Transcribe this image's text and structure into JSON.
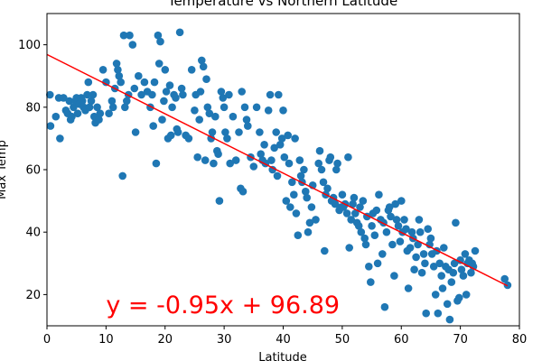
{
  "chart_data": {
    "type": "scatter",
    "title": "Temperature vs Northern Latitude",
    "xlabel": "Latitude",
    "ylabel": "Max Temp",
    "xlim": [
      0,
      80
    ],
    "ylim": [
      10,
      110
    ],
    "xticks": [
      0,
      10,
      20,
      30,
      40,
      50,
      60,
      70,
      80
    ],
    "yticks": [
      20,
      40,
      60,
      80,
      100
    ],
    "grid": false,
    "marker_color": "#1f77b4",
    "regression": {
      "slope": -0.95,
      "intercept": 96.89,
      "x_range": [
        0,
        78
      ],
      "color": "#ff0000",
      "equation": "y = -0.95x + 96.89",
      "equation_anchor": [
        10,
        14
      ]
    },
    "points": [
      [
        0.5,
        84
      ],
      [
        0.6,
        74
      ],
      [
        1.5,
        77
      ],
      [
        2.0,
        83
      ],
      [
        2.2,
        70
      ],
      [
        2.8,
        83
      ],
      [
        3.2,
        79
      ],
      [
        3.5,
        78
      ],
      [
        3.8,
        82
      ],
      [
        4.0,
        76
      ],
      [
        4.2,
        77
      ],
      [
        4.5,
        80
      ],
      [
        4.8,
        82
      ],
      [
        5.0,
        83
      ],
      [
        5.2,
        78
      ],
      [
        5.5,
        81
      ],
      [
        5.8,
        83
      ],
      [
        6.0,
        82
      ],
      [
        6.2,
        80
      ],
      [
        6.5,
        79
      ],
      [
        6.8,
        84
      ],
      [
        7.0,
        88
      ],
      [
        7.2,
        80
      ],
      [
        7.5,
        82
      ],
      [
        7.8,
        84
      ],
      [
        8.0,
        77
      ],
      [
        8.2,
        75
      ],
      [
        8.5,
        80
      ],
      [
        8.8,
        76
      ],
      [
        9.0,
        78
      ],
      [
        9.5,
        92
      ],
      [
        10.0,
        88
      ],
      [
        10.5,
        78
      ],
      [
        11.0,
        82
      ],
      [
        11.2,
        80
      ],
      [
        11.5,
        86
      ],
      [
        11.8,
        94
      ],
      [
        12.0,
        92
      ],
      [
        12.2,
        90
      ],
      [
        12.5,
        88
      ],
      [
        12.8,
        58
      ],
      [
        13.0,
        103
      ],
      [
        13.2,
        80
      ],
      [
        13.5,
        82
      ],
      [
        13.8,
        84
      ],
      [
        14.0,
        103
      ],
      [
        14.5,
        100
      ],
      [
        14.8,
        86
      ],
      [
        15.0,
        72
      ],
      [
        15.5,
        90
      ],
      [
        16.0,
        84
      ],
      [
        16.5,
        88
      ],
      [
        17.0,
        85
      ],
      [
        17.5,
        80
      ],
      [
        17.8,
        84
      ],
      [
        18.0,
        74
      ],
      [
        18.2,
        88
      ],
      [
        18.5,
        62
      ],
      [
        18.8,
        103
      ],
      [
        19.0,
        94
      ],
      [
        19.2,
        101
      ],
      [
        19.5,
        76
      ],
      [
        19.8,
        82
      ],
      [
        20.0,
        92
      ],
      [
        20.2,
        85
      ],
      [
        20.5,
        70
      ],
      [
        20.8,
        87
      ],
      [
        21.0,
        71
      ],
      [
        21.2,
        80
      ],
      [
        21.5,
        84
      ],
      [
        21.8,
        83
      ],
      [
        22.0,
        73
      ],
      [
        22.2,
        72
      ],
      [
        22.5,
        104
      ],
      [
        22.8,
        86
      ],
      [
        23.0,
        84
      ],
      [
        23.5,
        71
      ],
      [
        24.0,
        70
      ],
      [
        24.5,
        92
      ],
      [
        25.0,
        79
      ],
      [
        25.2,
        84
      ],
      [
        25.5,
        64
      ],
      [
        25.8,
        76
      ],
      [
        26.0,
        85
      ],
      [
        26.2,
        95
      ],
      [
        26.5,
        93
      ],
      [
        26.8,
        63
      ],
      [
        27.0,
        89
      ],
      [
        27.2,
        80
      ],
      [
        27.5,
        78
      ],
      [
        27.8,
        70
      ],
      [
        28.0,
        72
      ],
      [
        28.2,
        62
      ],
      [
        28.5,
        77
      ],
      [
        28.8,
        66
      ],
      [
        29.0,
        65
      ],
      [
        29.2,
        50
      ],
      [
        29.5,
        85
      ],
      [
        29.8,
        83
      ],
      [
        30.0,
        80
      ],
      [
        30.2,
        72
      ],
      [
        30.5,
        70
      ],
      [
        30.8,
        84
      ],
      [
        31.0,
        62
      ],
      [
        31.5,
        77
      ],
      [
        32.0,
        63
      ],
      [
        32.5,
        72
      ],
      [
        32.8,
        54
      ],
      [
        33.0,
        85
      ],
      [
        33.2,
        53
      ],
      [
        33.5,
        80
      ],
      [
        33.8,
        76
      ],
      [
        34.0,
        74
      ],
      [
        34.5,
        64
      ],
      [
        35.0,
        61
      ],
      [
        35.5,
        80
      ],
      [
        36.0,
        72
      ],
      [
        36.2,
        65
      ],
      [
        36.5,
        63
      ],
      [
        36.8,
        68
      ],
      [
        37.0,
        62
      ],
      [
        37.5,
        79
      ],
      [
        37.8,
        84
      ],
      [
        38.0,
        63
      ],
      [
        38.2,
        60
      ],
      [
        38.5,
        67
      ],
      [
        38.8,
        72
      ],
      [
        39.0,
        58
      ],
      [
        39.2,
        84
      ],
      [
        39.5,
        68
      ],
      [
        39.8,
        70
      ],
      [
        40.0,
        79
      ],
      [
        40.2,
        64
      ],
      [
        40.5,
        50
      ],
      [
        40.8,
        71
      ],
      [
        41.0,
        62
      ],
      [
        41.2,
        48
      ],
      [
        41.5,
        56
      ],
      [
        41.8,
        52
      ],
      [
        42.0,
        70
      ],
      [
        42.2,
        46
      ],
      [
        42.5,
        39
      ],
      [
        42.8,
        63
      ],
      [
        43.0,
        58
      ],
      [
        43.2,
        56
      ],
      [
        43.5,
        60
      ],
      [
        43.8,
        53
      ],
      [
        44.0,
        51
      ],
      [
        44.2,
        40
      ],
      [
        44.5,
        43
      ],
      [
        44.8,
        48
      ],
      [
        45.0,
        55
      ],
      [
        45.5,
        44
      ],
      [
        46.0,
        62
      ],
      [
        46.2,
        66
      ],
      [
        46.5,
        60
      ],
      [
        46.8,
        56
      ],
      [
        47.0,
        34
      ],
      [
        47.2,
        52
      ],
      [
        47.5,
        54
      ],
      [
        47.8,
        63
      ],
      [
        48.0,
        64
      ],
      [
        48.2,
        50
      ],
      [
        48.5,
        51
      ],
      [
        48.8,
        49
      ],
      [
        49.0,
        60
      ],
      [
        49.2,
        62
      ],
      [
        49.5,
        47
      ],
      [
        49.8,
        48
      ],
      [
        50.0,
        52
      ],
      [
        50.2,
        48
      ],
      [
        50.5,
        49
      ],
      [
        50.8,
        46
      ],
      [
        51.0,
        64
      ],
      [
        51.2,
        35
      ],
      [
        51.5,
        44
      ],
      [
        51.8,
        49
      ],
      [
        52.0,
        51
      ],
      [
        52.2,
        46
      ],
      [
        52.5,
        43
      ],
      [
        52.8,
        42
      ],
      [
        53.0,
        48
      ],
      [
        53.2,
        40
      ],
      [
        53.5,
        50
      ],
      [
        53.8,
        38
      ],
      [
        54.0,
        36
      ],
      [
        54.2,
        45
      ],
      [
        54.5,
        29
      ],
      [
        54.8,
        24
      ],
      [
        55.0,
        42
      ],
      [
        55.2,
        46
      ],
      [
        55.5,
        39
      ],
      [
        55.8,
        47
      ],
      [
        56.0,
        30
      ],
      [
        56.2,
        52
      ],
      [
        56.5,
        44
      ],
      [
        56.8,
        33
      ],
      [
        57.0,
        43
      ],
      [
        57.2,
        16
      ],
      [
        57.5,
        40
      ],
      [
        57.8,
        47
      ],
      [
        58.0,
        48
      ],
      [
        58.2,
        45
      ],
      [
        58.5,
        36
      ],
      [
        58.8,
        26
      ],
      [
        59.0,
        49
      ],
      [
        59.2,
        44
      ],
      [
        59.5,
        42
      ],
      [
        59.8,
        37
      ],
      [
        60.0,
        50
      ],
      [
        60.2,
        40
      ],
      [
        60.5,
        44
      ],
      [
        60.8,
        41
      ],
      [
        61.0,
        34
      ],
      [
        61.2,
        22
      ],
      [
        61.5,
        35
      ],
      [
        61.8,
        40
      ],
      [
        62.0,
        38
      ],
      [
        62.2,
        28
      ],
      [
        62.5,
        32
      ],
      [
        62.8,
        36
      ],
      [
        63.0,
        44
      ],
      [
        63.2,
        40
      ],
      [
        63.5,
        27
      ],
      [
        63.8,
        33
      ],
      [
        64.0,
        30
      ],
      [
        64.2,
        14
      ],
      [
        64.5,
        41
      ],
      [
        64.8,
        36
      ],
      [
        65.0,
        38
      ],
      [
        65.2,
        33
      ],
      [
        65.5,
        29
      ],
      [
        65.8,
        20
      ],
      [
        66.0,
        34
      ],
      [
        66.2,
        14
      ],
      [
        66.5,
        30
      ],
      [
        66.8,
        26
      ],
      [
        67.0,
        22
      ],
      [
        67.2,
        35
      ],
      [
        67.5,
        29
      ],
      [
        67.8,
        17
      ],
      [
        68.0,
        28
      ],
      [
        68.2,
        12
      ],
      [
        68.5,
        24
      ],
      [
        68.8,
        27
      ],
      [
        69.0,
        30
      ],
      [
        69.2,
        43
      ],
      [
        69.5,
        18
      ],
      [
        69.8,
        19
      ],
      [
        70.0,
        31
      ],
      [
        70.2,
        28
      ],
      [
        70.5,
        26
      ],
      [
        70.8,
        33
      ],
      [
        71.0,
        20
      ],
      [
        71.2,
        30
      ],
      [
        71.5,
        31
      ],
      [
        71.8,
        27
      ],
      [
        72.0,
        30
      ],
      [
        72.2,
        29
      ],
      [
        72.5,
        34
      ],
      [
        77.5,
        25
      ],
      [
        78.0,
        23
      ]
    ]
  }
}
